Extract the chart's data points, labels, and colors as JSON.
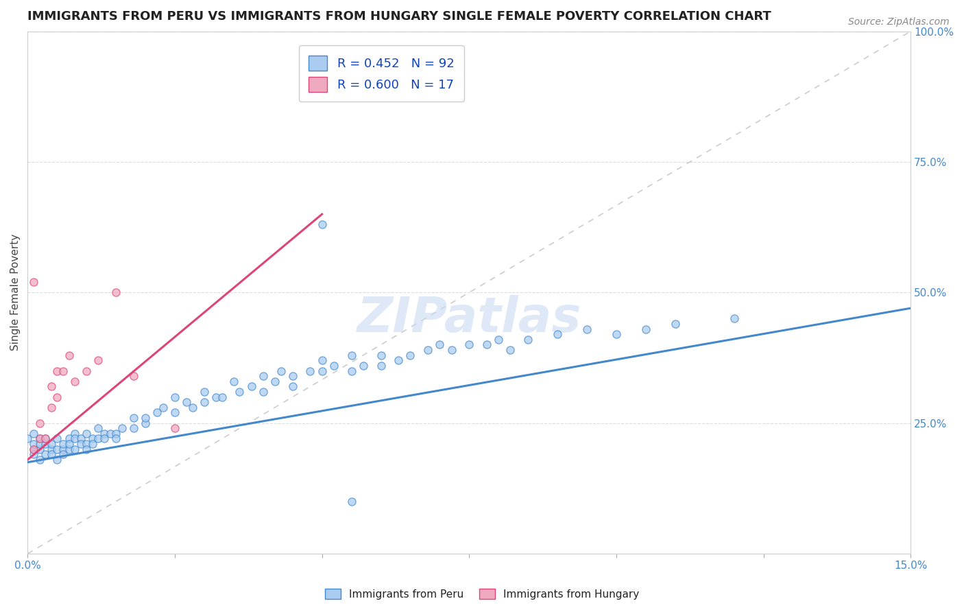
{
  "title": "IMMIGRANTS FROM PERU VS IMMIGRANTS FROM HUNGARY SINGLE FEMALE POVERTY CORRELATION CHART",
  "source": "Source: ZipAtlas.com",
  "ylabel": "Single Female Poverty",
  "xlim": [
    0.0,
    0.15
  ],
  "ylim": [
    0.0,
    1.0
  ],
  "xtick_vals": [
    0.0,
    0.025,
    0.05,
    0.075,
    0.1,
    0.125,
    0.15
  ],
  "xtick_labels_show": [
    "0.0%",
    "",
    "",
    "",
    "",
    "",
    "15.0%"
  ],
  "ytick_vals": [
    0.0,
    0.25,
    0.5,
    0.75,
    1.0
  ],
  "ytick_labels": [
    "",
    "25.0%",
    "50.0%",
    "75.0%",
    "100.0%"
  ],
  "peru_color": "#aaccf0",
  "hungary_color": "#f0aac0",
  "peru_R": 0.452,
  "peru_N": 92,
  "hungary_R": 0.6,
  "hungary_N": 17,
  "peru_line_color": "#4488cc",
  "hungary_line_color": "#dd4477",
  "diagonal_color": "#cccccc",
  "legend_R_color": "#1144bb",
  "background_color": "#ffffff",
  "grid_color": "#dddddd",
  "title_fontsize": 13,
  "source_fontsize": 10,
  "axis_label_fontsize": 11,
  "tick_fontsize": 11,
  "legend_fontsize": 13,
  "watermark_text": "ZIPatlas",
  "watermark_color": "#c8daf0",
  "watermark_fontsize": 52,
  "peru_line_x0": 0.0,
  "peru_line_y0": 0.175,
  "peru_line_x1": 0.15,
  "peru_line_y1": 0.47,
  "hungary_line_x0": 0.0,
  "hungary_line_y0": 0.18,
  "hungary_line_x1": 0.05,
  "hungary_line_y1": 0.65,
  "peru_pts_x": [
    0.0,
    0.001,
    0.001,
    0.001,
    0.001,
    0.002,
    0.002,
    0.002,
    0.002,
    0.003,
    0.003,
    0.003,
    0.004,
    0.004,
    0.004,
    0.005,
    0.005,
    0.005,
    0.006,
    0.006,
    0.006,
    0.007,
    0.007,
    0.007,
    0.008,
    0.008,
    0.008,
    0.009,
    0.009,
    0.01,
    0.01,
    0.01,
    0.011,
    0.011,
    0.012,
    0.012,
    0.013,
    0.013,
    0.014,
    0.015,
    0.015,
    0.016,
    0.018,
    0.018,
    0.02,
    0.02,
    0.022,
    0.023,
    0.025,
    0.025,
    0.027,
    0.028,
    0.03,
    0.03,
    0.032,
    0.033,
    0.035,
    0.036,
    0.038,
    0.04,
    0.04,
    0.042,
    0.043,
    0.045,
    0.045,
    0.048,
    0.05,
    0.05,
    0.052,
    0.055,
    0.055,
    0.057,
    0.06,
    0.06,
    0.063,
    0.065,
    0.068,
    0.07,
    0.072,
    0.075,
    0.078,
    0.08,
    0.082,
    0.085,
    0.09,
    0.095,
    0.1,
    0.105,
    0.11,
    0.12,
    0.05,
    0.055
  ],
  "peru_pts_y": [
    0.22,
    0.2,
    0.19,
    0.21,
    0.23,
    0.18,
    0.22,
    0.2,
    0.21,
    0.21,
    0.19,
    0.22,
    0.2,
    0.21,
    0.19,
    0.18,
    0.2,
    0.22,
    0.2,
    0.21,
    0.19,
    0.22,
    0.2,
    0.21,
    0.23,
    0.22,
    0.2,
    0.22,
    0.21,
    0.23,
    0.21,
    0.2,
    0.22,
    0.21,
    0.24,
    0.22,
    0.23,
    0.22,
    0.23,
    0.23,
    0.22,
    0.24,
    0.26,
    0.24,
    0.25,
    0.26,
    0.27,
    0.28,
    0.3,
    0.27,
    0.29,
    0.28,
    0.29,
    0.31,
    0.3,
    0.3,
    0.33,
    0.31,
    0.32,
    0.34,
    0.31,
    0.33,
    0.35,
    0.34,
    0.32,
    0.35,
    0.37,
    0.35,
    0.36,
    0.38,
    0.35,
    0.36,
    0.38,
    0.36,
    0.37,
    0.38,
    0.39,
    0.4,
    0.39,
    0.4,
    0.4,
    0.41,
    0.39,
    0.41,
    0.42,
    0.43,
    0.42,
    0.43,
    0.44,
    0.45,
    0.63,
    0.1
  ],
  "hungary_pts_x": [
    0.001,
    0.001,
    0.002,
    0.002,
    0.003,
    0.004,
    0.004,
    0.005,
    0.005,
    0.006,
    0.007,
    0.008,
    0.01,
    0.012,
    0.015,
    0.018,
    0.025
  ],
  "hungary_pts_y": [
    0.52,
    0.2,
    0.22,
    0.25,
    0.22,
    0.28,
    0.32,
    0.35,
    0.3,
    0.35,
    0.38,
    0.33,
    0.35,
    0.37,
    0.5,
    0.34,
    0.24
  ]
}
